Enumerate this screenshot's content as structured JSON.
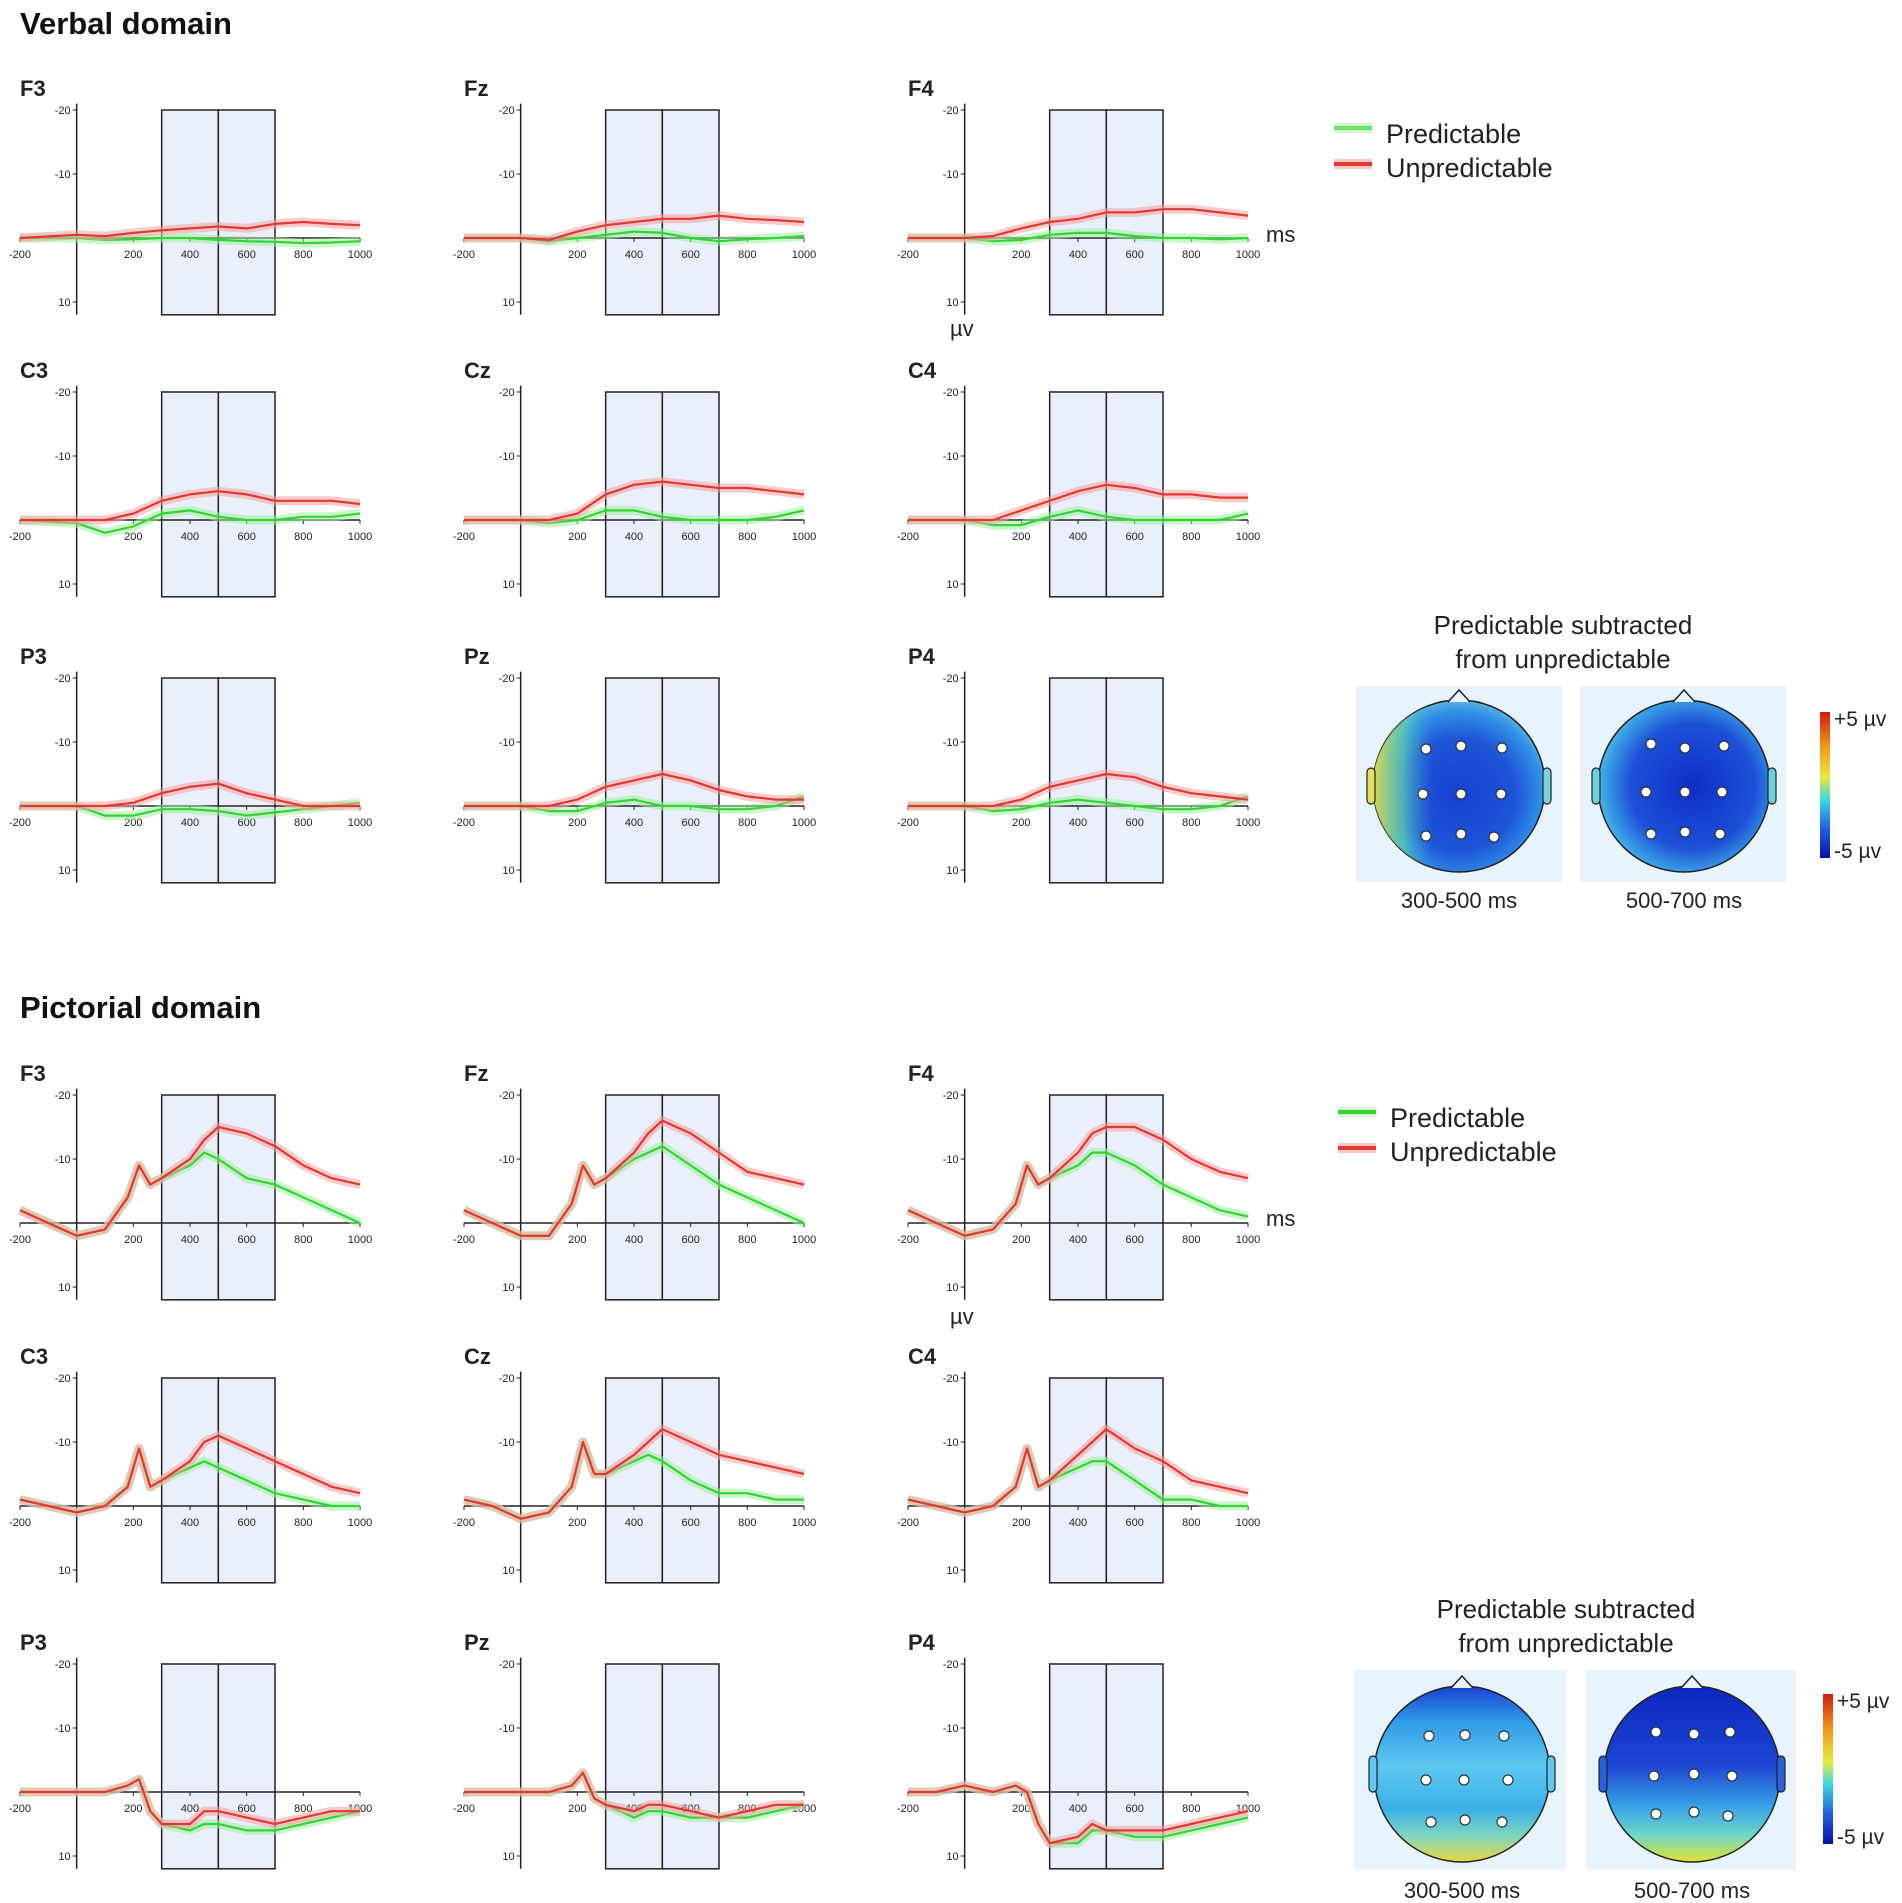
{
  "chart_data": {
    "type": "line",
    "x_unit": "ms",
    "y_unit": "µv",
    "x_ticks": [
      -200,
      200,
      400,
      600,
      800,
      1000
    ],
    "y_ticks": [
      -20,
      -10,
      10
    ],
    "y_axis_inverted": true,
    "shaded_windows": [
      [
        300,
        500
      ],
      [
        500,
        700
      ]
    ],
    "legend": [
      "Predictable",
      "Unpredictable"
    ],
    "colors": {
      "predictable": "#35d335",
      "unpredictable": "#de3a34",
      "window_fill": "#eaf0fb",
      "frame": "#222222"
    },
    "sections": [
      {
        "title": "Verbal domain",
        "axis_note_x": "ms",
        "axis_note_y": "µv",
        "topomap": {
          "title_line1": "Predictable subtracted",
          "title_line2": "from unpredictable",
          "windows": [
            "300-500 ms",
            "500-700 ms"
          ],
          "scale_max": "+5 µv",
          "scale_min": "-5 µv"
        },
        "channels": [
          {
            "name": "F3",
            "x": [
              -200,
              0,
              100,
              200,
              300,
              400,
              500,
              600,
              700,
              800,
              900,
              1000
            ],
            "predictable": [
              0,
              0,
              0.3,
              0.2,
              0,
              0,
              0.3,
              0.5,
              0.6,
              0.8,
              0.7,
              0.5
            ],
            "unpredictable": [
              0,
              -0.5,
              -0.3,
              -0.8,
              -1.2,
              -1.5,
              -1.8,
              -1.5,
              -2.2,
              -2.5,
              -2.2,
              -2.0
            ]
          },
          {
            "name": "Fz",
            "x": [
              -200,
              0,
              100,
              200,
              300,
              400,
              500,
              600,
              700,
              800,
              900,
              1000
            ],
            "predictable": [
              0,
              0,
              0.5,
              0,
              -0.5,
              -1,
              -0.8,
              0,
              0.5,
              0.2,
              0,
              -0.3
            ],
            "unpredictable": [
              0,
              0,
              0.3,
              -1,
              -2,
              -2.5,
              -3,
              -3,
              -3.5,
              -3,
              -2.8,
              -2.5
            ]
          },
          {
            "name": "F4",
            "x": [
              -200,
              0,
              100,
              200,
              300,
              400,
              500,
              600,
              700,
              800,
              900,
              1000
            ],
            "predictable": [
              0,
              0,
              0.5,
              0.3,
              -0.5,
              -0.8,
              -0.8,
              -0.3,
              0,
              0,
              0.2,
              0
            ],
            "unpredictable": [
              0,
              0,
              -0.3,
              -1.5,
              -2.5,
              -3,
              -4,
              -4,
              -4.5,
              -4.5,
              -4,
              -3.5
            ]
          },
          {
            "name": "C3",
            "x": [
              -200,
              0,
              100,
              200,
              300,
              400,
              500,
              600,
              700,
              800,
              900,
              1000
            ],
            "predictable": [
              0,
              0.5,
              2,
              1,
              -1,
              -1.5,
              -0.5,
              0,
              0,
              -0.5,
              -0.5,
              -1
            ],
            "unpredictable": [
              0,
              0,
              0,
              -1,
              -3,
              -4,
              -4.5,
              -4,
              -3,
              -3,
              -3,
              -2.5
            ]
          },
          {
            "name": "Cz",
            "x": [
              -200,
              0,
              100,
              200,
              300,
              400,
              500,
              600,
              700,
              800,
              900,
              1000
            ],
            "predictable": [
              0,
              0,
              0.5,
              0,
              -1.5,
              -1.5,
              -0.5,
              0,
              0,
              0,
              -0.5,
              -1.5
            ],
            "unpredictable": [
              0,
              0,
              0,
              -1,
              -4,
              -5.5,
              -6,
              -5.5,
              -5,
              -5,
              -4.5,
              -4
            ]
          },
          {
            "name": "C4",
            "x": [
              -200,
              0,
              100,
              200,
              300,
              400,
              500,
              600,
              700,
              800,
              900,
              1000
            ],
            "predictable": [
              0,
              0,
              0.8,
              0.8,
              -0.5,
              -1.5,
              -0.5,
              0,
              0,
              0,
              0,
              -1
            ],
            "unpredictable": [
              0,
              0,
              0,
              -1.5,
              -3,
              -4.5,
              -5.5,
              -5,
              -4,
              -4,
              -3.5,
              -3.5
            ]
          },
          {
            "name": "P3",
            "x": [
              -200,
              0,
              100,
              200,
              300,
              400,
              500,
              600,
              700,
              800,
              900,
              1000
            ],
            "predictable": [
              0,
              0,
              1.5,
              1.5,
              0.5,
              0.5,
              0.8,
              1.5,
              1,
              0.5,
              0,
              -0.5
            ],
            "unpredictable": [
              0,
              0,
              0,
              -0.5,
              -2,
              -3,
              -3.5,
              -2,
              -1,
              0,
              0,
              0
            ]
          },
          {
            "name": "Pz",
            "x": [
              -200,
              0,
              100,
              200,
              300,
              400,
              500,
              600,
              700,
              800,
              900,
              1000
            ],
            "predictable": [
              0,
              0,
              0.8,
              0.8,
              -0.5,
              -1,
              0,
              0,
              0.5,
              0.5,
              0,
              -1.5
            ],
            "unpredictable": [
              0,
              0,
              0,
              -1,
              -3,
              -4,
              -5,
              -4,
              -2.5,
              -1.5,
              -1,
              -1
            ]
          },
          {
            "name": "P4",
            "x": [
              -200,
              0,
              100,
              200,
              300,
              400,
              500,
              600,
              700,
              800,
              900,
              1000
            ],
            "predictable": [
              0,
              0,
              0.8,
              0.5,
              -0.5,
              -1,
              -0.5,
              0,
              0.5,
              0.5,
              0,
              -1.5
            ],
            "unpredictable": [
              0,
              0,
              0,
              -1,
              -3,
              -4,
              -5,
              -4.5,
              -3,
              -2,
              -1.5,
              -1
            ]
          }
        ]
      },
      {
        "title": "Pictorial domain",
        "axis_note_x": "ms",
        "axis_note_y": "µv",
        "topomap": {
          "title_line1": "Predictable subtracted",
          "title_line2": "from unpredictable",
          "windows": [
            "300-500 ms",
            "500-700 ms"
          ],
          "scale_max": "+5 µv",
          "scale_min": "-5 µv"
        },
        "channels": [
          {
            "name": "F3",
            "x": [
              -200,
              -100,
              0,
              100,
              180,
              220,
              260,
              300,
              400,
              450,
              500,
              600,
              700,
              800,
              900,
              1000
            ],
            "predictable": [
              -2,
              0,
              2,
              1,
              -4,
              -9,
              -6,
              -7,
              -9,
              -11,
              -10,
              -7,
              -6,
              -4,
              -2,
              0
            ],
            "unpredictable": [
              -2,
              0,
              2,
              1,
              -4,
              -9,
              -6,
              -7,
              -10,
              -13,
              -15,
              -14,
              -12,
              -9,
              -7,
              -6
            ]
          },
          {
            "name": "Fz",
            "x": [
              -200,
              -100,
              0,
              100,
              180,
              220,
              260,
              300,
              400,
              450,
              500,
              600,
              700,
              800,
              900,
              1000
            ],
            "predictable": [
              -2,
              0,
              2,
              2,
              -3,
              -9,
              -6,
              -7,
              -10,
              -11,
              -12,
              -9,
              -6,
              -4,
              -2,
              0
            ],
            "unpredictable": [
              -2,
              0,
              2,
              2,
              -3,
              -9,
              -6,
              -7,
              -11,
              -14,
              -16,
              -14,
              -11,
              -8,
              -7,
              -6
            ]
          },
          {
            "name": "F4",
            "x": [
              -200,
              -100,
              0,
              100,
              180,
              220,
              260,
              300,
              400,
              450,
              500,
              600,
              700,
              800,
              900,
              1000
            ],
            "predictable": [
              -2,
              0,
              2,
              1,
              -3,
              -9,
              -6,
              -7,
              -9,
              -11,
              -11,
              -9,
              -6,
              -4,
              -2,
              -1
            ],
            "unpredictable": [
              -2,
              0,
              2,
              1,
              -3,
              -9,
              -6,
              -7,
              -11,
              -14,
              -15,
              -15,
              -13,
              -10,
              -8,
              -7
            ]
          },
          {
            "name": "C3",
            "x": [
              -200,
              -100,
              0,
              100,
              180,
              220,
              260,
              300,
              400,
              450,
              500,
              600,
              700,
              800,
              900,
              1000
            ],
            "predictable": [
              -1,
              0,
              1,
              0,
              -3,
              -9,
              -3,
              -4,
              -6,
              -7,
              -6,
              -4,
              -2,
              -1,
              0,
              0
            ],
            "unpredictable": [
              -1,
              0,
              1,
              0,
              -3,
              -9,
              -3,
              -4,
              -7,
              -10,
              -11,
              -9,
              -7,
              -5,
              -3,
              -2
            ]
          },
          {
            "name": "Cz",
            "x": [
              -200,
              -100,
              0,
              100,
              180,
              220,
              260,
              300,
              400,
              450,
              500,
              600,
              700,
              800,
              900,
              1000
            ],
            "predictable": [
              -1,
              0,
              2,
              1,
              -3,
              -10,
              -5,
              -5,
              -7,
              -8,
              -7,
              -4,
              -2,
              -2,
              -1,
              -1
            ],
            "unpredictable": [
              -1,
              0,
              2,
              1,
              -3,
              -10,
              -5,
              -5,
              -8,
              -10,
              -12,
              -10,
              -8,
              -7,
              -6,
              -5
            ]
          },
          {
            "name": "C4",
            "x": [
              -200,
              -100,
              0,
              100,
              180,
              220,
              260,
              300,
              400,
              450,
              500,
              600,
              700,
              800,
              900,
              1000
            ],
            "predictable": [
              -1,
              0,
              1,
              0,
              -3,
              -9,
              -3,
              -4,
              -6,
              -7,
              -7,
              -4,
              -1,
              -1,
              0,
              0
            ],
            "unpredictable": [
              -1,
              0,
              1,
              0,
              -3,
              -9,
              -3,
              -4,
              -8,
              -10,
              -12,
              -9,
              -7,
              -4,
              -3,
              -2
            ]
          },
          {
            "name": "P3",
            "x": [
              -200,
              -100,
              0,
              100,
              180,
              220,
              260,
              300,
              400,
              450,
              500,
              600,
              700,
              800,
              900,
              1000
            ],
            "predictable": [
              0,
              0,
              0,
              0,
              -1,
              -2,
              3,
              5,
              6,
              5,
              5,
              6,
              6,
              5,
              4,
              3
            ],
            "unpredictable": [
              0,
              0,
              0,
              0,
              -1,
              -2,
              3,
              5,
              5,
              3,
              3,
              4,
              5,
              4,
              3,
              3
            ]
          },
          {
            "name": "Pz",
            "x": [
              -200,
              -100,
              0,
              100,
              180,
              220,
              260,
              300,
              400,
              450,
              500,
              600,
              700,
              800,
              900,
              1000
            ],
            "predictable": [
              0,
              0,
              0,
              0,
              -1,
              -3,
              1,
              2,
              4,
              3,
              3,
              4,
              4,
              4,
              3,
              2
            ],
            "unpredictable": [
              0,
              0,
              0,
              0,
              -1,
              -3,
              1,
              2,
              3,
              2,
              2,
              3,
              4,
              3,
              2,
              2
            ]
          },
          {
            "name": "P4",
            "x": [
              -200,
              -100,
              0,
              100,
              180,
              220,
              260,
              300,
              400,
              450,
              500,
              600,
              700,
              800,
              900,
              1000
            ],
            "predictable": [
              0,
              0,
              -1,
              0,
              -1,
              0,
              5,
              8,
              8,
              6,
              6,
              7,
              7,
              6,
              5,
              4
            ],
            "unpredictable": [
              0,
              0,
              -1,
              0,
              -1,
              0,
              5,
              8,
              7,
              5,
              6,
              6,
              6,
              5,
              4,
              3
            ]
          }
        ]
      }
    ]
  }
}
